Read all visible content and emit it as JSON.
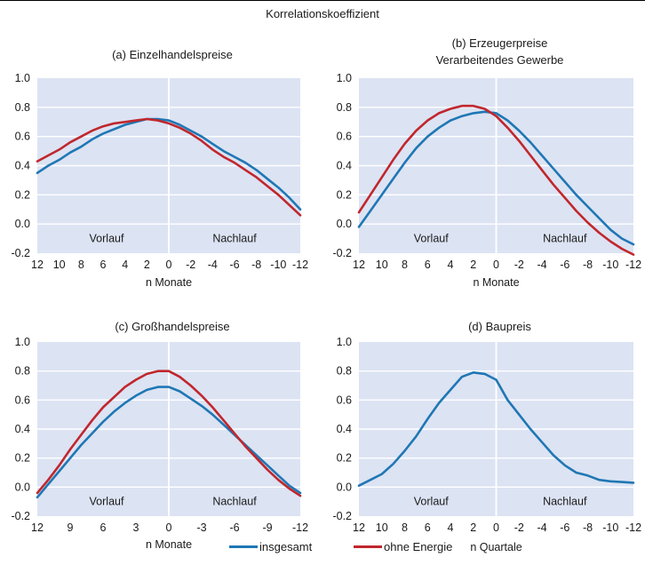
{
  "title": "Korrelationskoeffizient",
  "colors": {
    "insgesamt": "#1f77b4",
    "ohne_energie": "#c0272d",
    "panel_bg": "#dce3f3"
  },
  "legend": [
    {
      "name": "insgesamt",
      "color": "#1f77b4"
    },
    {
      "name": "ohne Energie",
      "color": "#c0272d"
    }
  ],
  "chart_data": [
    {
      "type": "line",
      "title_lines": [
        "(a) Einzelhandelspreise"
      ],
      "xlabel": "n Monate",
      "xticks": [
        "12",
        "10",
        "8",
        "6",
        "4",
        "2",
        "0",
        "-2",
        "-4",
        "-6",
        "-8",
        "-10",
        "-12"
      ],
      "x": [
        12,
        11,
        10,
        9,
        8,
        7,
        6,
        5,
        4,
        3,
        2,
        1,
        0,
        -1,
        -2,
        -3,
        -4,
        -5,
        -6,
        -7,
        -8,
        -9,
        -10,
        -11,
        -12
      ],
      "xlim": [
        12,
        -12
      ],
      "ylim": [
        -0.2,
        1.0
      ],
      "yticks": [
        "-0.2",
        "0.0",
        "0.2",
        "0.4",
        "0.6",
        "0.8",
        "1.0"
      ],
      "regions": [
        "Vorlauf",
        "Nachlauf"
      ],
      "series": [
        {
          "name": "insgesamt",
          "values": [
            0.35,
            0.4,
            0.44,
            0.49,
            0.53,
            0.58,
            0.62,
            0.65,
            0.68,
            0.7,
            0.72,
            0.72,
            0.71,
            0.68,
            0.64,
            0.6,
            0.55,
            0.5,
            0.46,
            0.42,
            0.37,
            0.31,
            0.25,
            0.18,
            0.1
          ]
        },
        {
          "name": "ohne Energie",
          "values": [
            0.43,
            0.47,
            0.51,
            0.56,
            0.6,
            0.64,
            0.67,
            0.69,
            0.7,
            0.71,
            0.72,
            0.71,
            0.69,
            0.66,
            0.62,
            0.57,
            0.51,
            0.46,
            0.42,
            0.37,
            0.32,
            0.26,
            0.2,
            0.13,
            0.06
          ]
        }
      ]
    },
    {
      "type": "line",
      "title_lines": [
        "(b) Erzeugerpreise",
        "Verarbeitendes Gewerbe"
      ],
      "xlabel": "n Monate",
      "xticks": [
        "12",
        "10",
        "8",
        "6",
        "4",
        "2",
        "0",
        "-2",
        "-4",
        "-6",
        "-8",
        "-10",
        "-12"
      ],
      "x": [
        12,
        11,
        10,
        9,
        8,
        7,
        6,
        5,
        4,
        3,
        2,
        1,
        0,
        -1,
        -2,
        -3,
        -4,
        -5,
        -6,
        -7,
        -8,
        -9,
        -10,
        -11,
        -12
      ],
      "xlim": [
        12,
        -12
      ],
      "ylim": [
        -0.2,
        1.0
      ],
      "yticks": [
        "-0.2",
        "0.0",
        "0.2",
        "0.4",
        "0.6",
        "0.8",
        "1.0"
      ],
      "regions": [
        "Vorlauf",
        "Nachlauf"
      ],
      "series": [
        {
          "name": "insgesamt",
          "values": [
            -0.02,
            0.09,
            0.2,
            0.31,
            0.42,
            0.52,
            0.6,
            0.66,
            0.71,
            0.74,
            0.76,
            0.77,
            0.76,
            0.71,
            0.64,
            0.56,
            0.47,
            0.38,
            0.29,
            0.2,
            0.12,
            0.04,
            -0.04,
            -0.1,
            -0.14
          ]
        },
        {
          "name": "ohne Energie",
          "values": [
            0.08,
            0.2,
            0.32,
            0.44,
            0.55,
            0.64,
            0.71,
            0.76,
            0.79,
            0.81,
            0.81,
            0.79,
            0.74,
            0.66,
            0.57,
            0.47,
            0.37,
            0.27,
            0.18,
            0.09,
            0.01,
            -0.06,
            -0.12,
            -0.17,
            -0.21
          ]
        }
      ]
    },
    {
      "type": "line",
      "title_lines": [
        "(c) Großhandelspreise"
      ],
      "xlabel": "n Monate",
      "xticks": [
        "12",
        "9",
        "6",
        "3",
        "0",
        "-3",
        "-6",
        "-9",
        "-12"
      ],
      "x": [
        12,
        11,
        10,
        9,
        8,
        7,
        6,
        5,
        4,
        3,
        2,
        1,
        0,
        -1,
        -2,
        -3,
        -4,
        -5,
        -6,
        -7,
        -8,
        -9,
        -10,
        -11,
        -12
      ],
      "xlim": [
        12,
        -12
      ],
      "ylim": [
        -0.2,
        1.0
      ],
      "yticks": [
        "-0.2",
        "0.0",
        "0.2",
        "0.4",
        "0.6",
        "0.8",
        "1.0"
      ],
      "regions": [
        "Vorlauf",
        "Nachlauf"
      ],
      "series": [
        {
          "name": "insgesamt",
          "values": [
            -0.07,
            0.02,
            0.11,
            0.2,
            0.29,
            0.37,
            0.45,
            0.52,
            0.58,
            0.63,
            0.67,
            0.69,
            0.69,
            0.66,
            0.61,
            0.56,
            0.5,
            0.43,
            0.36,
            0.29,
            0.22,
            0.15,
            0.08,
            0.01,
            -0.04
          ]
        },
        {
          "name": "ohne Energie",
          "values": [
            -0.04,
            0.05,
            0.15,
            0.26,
            0.36,
            0.46,
            0.55,
            0.62,
            0.69,
            0.74,
            0.78,
            0.8,
            0.8,
            0.76,
            0.7,
            0.63,
            0.55,
            0.46,
            0.37,
            0.28,
            0.2,
            0.12,
            0.05,
            -0.01,
            -0.06
          ]
        }
      ]
    },
    {
      "type": "line",
      "title_lines": [
        "(d) Baupreis"
      ],
      "xlabel": "n Quartale",
      "xticks": [
        "12",
        "10",
        "8",
        "6",
        "4",
        "2",
        "0",
        "-2",
        "-4",
        "-6",
        "-8",
        "-10",
        "-12"
      ],
      "x": [
        12,
        11,
        10,
        9,
        8,
        7,
        6,
        5,
        4,
        3,
        2,
        1,
        0,
        -1,
        -2,
        -3,
        -4,
        -5,
        -6,
        -7,
        -8,
        -9,
        -10,
        -11,
        -12
      ],
      "xlim": [
        12,
        -12
      ],
      "ylim": [
        -0.2,
        1.0
      ],
      "yticks": [
        "-0.2",
        "0.0",
        "0.2",
        "0.4",
        "0.6",
        "0.8",
        "1.0"
      ],
      "regions": [
        "Vorlauf",
        "Nachlauf"
      ],
      "series": [
        {
          "name": "insgesamt",
          "values": [
            0.01,
            0.05,
            0.09,
            0.16,
            0.25,
            0.35,
            0.47,
            0.58,
            0.67,
            0.76,
            0.79,
            0.78,
            0.74,
            0.6,
            0.5,
            0.4,
            0.31,
            0.22,
            0.15,
            0.1,
            0.08,
            0.05,
            0.04,
            0.035,
            0.03
          ]
        }
      ]
    }
  ]
}
